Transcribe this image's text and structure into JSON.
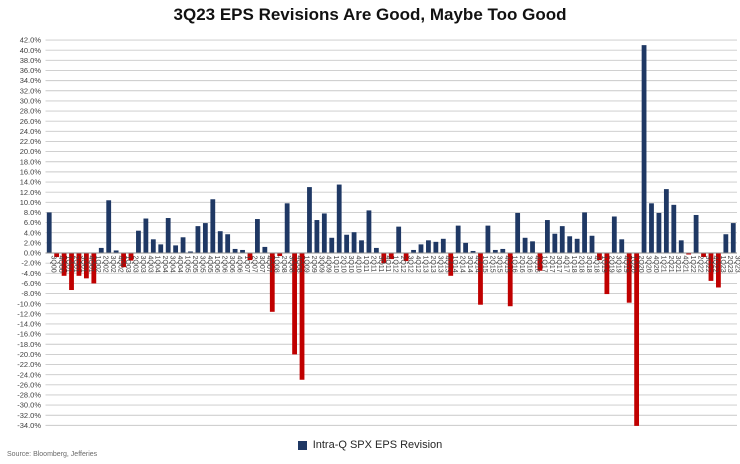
{
  "chart_data": {
    "type": "bar",
    "title": "3Q23 EPS Revisions Are Good, Maybe Too Good",
    "xlabel": "",
    "ylabel": "",
    "ylim": [
      -34,
      42
    ],
    "ytick_step": 2,
    "ytick_format": "percent_1dp",
    "grid": true,
    "legend_position": "bottom",
    "series_name": "Intra-Q SPX EPS Revision",
    "colors": {
      "positive": "#1F3864",
      "negative": "#C00000",
      "grid": "#c9c9c9",
      "zero_axis": "#8c8c8c",
      "tick_text": "#404040"
    },
    "categories": [
      "3Q00",
      "4Q00",
      "1Q01",
      "2Q01",
      "3Q01",
      "4Q01",
      "1Q02",
      "2Q02",
      "3Q02",
      "4Q02",
      "1Q03",
      "2Q03",
      "3Q03",
      "4Q03",
      "1Q04",
      "2Q04",
      "3Q04",
      "4Q04",
      "1Q05",
      "2Q05",
      "3Q05",
      "4Q05",
      "1Q06",
      "2Q06",
      "3Q06",
      "4Q06",
      "1Q07",
      "2Q07",
      "3Q07",
      "4Q07",
      "1Q08",
      "2Q08",
      "3Q08",
      "4Q08",
      "1Q09",
      "2Q09",
      "3Q09",
      "4Q09",
      "1Q10",
      "2Q10",
      "3Q10",
      "4Q10",
      "1Q11",
      "2Q11",
      "3Q11",
      "4Q11",
      "1Q12",
      "2Q12",
      "3Q12",
      "4Q12",
      "1Q13",
      "2Q13",
      "3Q13",
      "4Q13",
      "1Q14",
      "2Q14",
      "3Q14",
      "4Q14",
      "1Q15",
      "2Q15",
      "3Q15",
      "4Q15",
      "1Q16",
      "2Q16",
      "3Q16",
      "4Q16",
      "1Q17",
      "2Q17",
      "3Q17",
      "4Q17",
      "1Q18",
      "2Q18",
      "3Q18",
      "4Q18",
      "1Q19",
      "2Q19",
      "3Q19",
      "4Q19",
      "1Q20",
      "2Q20",
      "3Q20",
      "4Q20",
      "1Q21",
      "2Q21",
      "3Q21",
      "4Q21",
      "1Q22",
      "2Q22",
      "3Q22",
      "4Q22",
      "1Q23",
      "2Q23",
      "3Q23"
    ],
    "values": [
      8.0,
      -0.8,
      -4.5,
      -7.3,
      -4.5,
      -5.0,
      -6.0,
      1.0,
      10.4,
      0.5,
      -2.8,
      -1.5,
      4.4,
      6.8,
      2.7,
      1.7,
      6.9,
      1.5,
      3.1,
      0.3,
      5.3,
      5.9,
      10.6,
      4.3,
      3.7,
      0.8,
      0.6,
      -1.4,
      6.7,
      1.2,
      -11.6,
      -0.6,
      9.8,
      -20.0,
      -25.0,
      13.0,
      6.5,
      7.8,
      3.0,
      13.5,
      3.6,
      4.1,
      2.5,
      8.4,
      1.0,
      -2.0,
      -1.2,
      5.2,
      -1.6,
      0.6,
      1.7,
      2.5,
      2.2,
      2.8,
      -4.5,
      5.4,
      2.0,
      0.4,
      -10.2,
      5.4,
      0.6,
      0.8,
      -10.5,
      7.9,
      3.0,
      2.3,
      -3.5,
      6.5,
      3.8,
      5.3,
      3.3,
      2.8,
      8.0,
      3.4,
      -1.4,
      -8.1,
      7.2,
      2.7,
      -9.8,
      -34.1,
      41.0,
      9.8,
      7.9,
      12.6,
      9.5,
      2.5,
      -0.3,
      7.5,
      -0.8,
      -5.5,
      -6.8,
      3.7,
      5.9
    ]
  },
  "legend": {
    "label": "Intra-Q SPX EPS Revision"
  },
  "footer": {
    "source": "Source: Bloomberg, Jefferies"
  }
}
